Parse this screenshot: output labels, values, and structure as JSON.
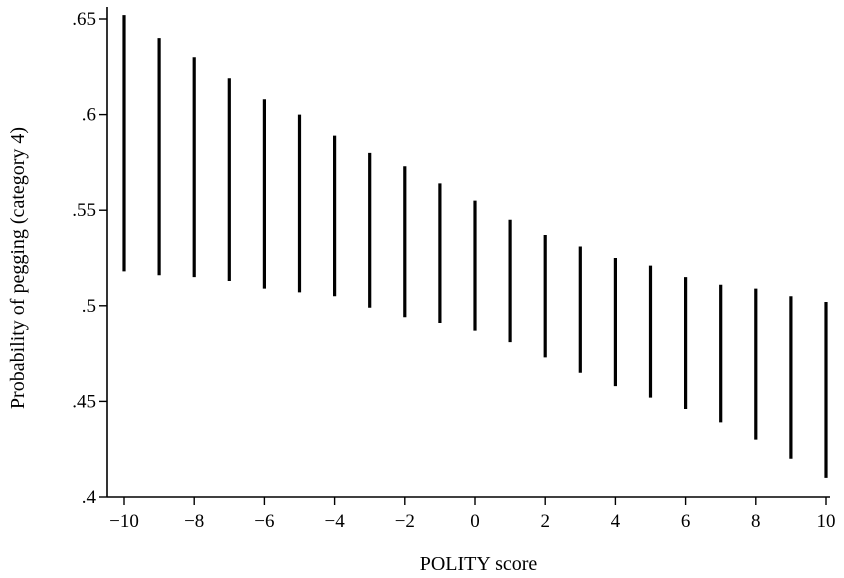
{
  "chart_data": {
    "type": "interval",
    "title": "",
    "xlabel": "POLITY score",
    "ylabel": "Probability of pegging (category 4)",
    "xlim": [
      -10,
      10
    ],
    "ylim": [
      0.4,
      0.65
    ],
    "x_ticks": [
      -10,
      -8,
      -6,
      -4,
      -2,
      0,
      2,
      4,
      6,
      8,
      10
    ],
    "x_tick_labels": [
      "−10",
      "−8",
      "−6",
      "−4",
      "−2",
      "0",
      "2",
      "4",
      "6",
      "8",
      "10"
    ],
    "y_ticks": [
      0.4,
      0.45,
      0.5,
      0.55,
      0.6,
      0.65
    ],
    "y_tick_labels": [
      ".4",
      ".45",
      ".5",
      ".55",
      ".6",
      ".65"
    ],
    "grid": false,
    "legend": "none",
    "series": [
      {
        "x": [
          -10,
          -9,
          -8,
          -7,
          -6,
          -5,
          -4,
          -3,
          -2,
          -1,
          0,
          1,
          2,
          3,
          4,
          5,
          6,
          7,
          8,
          9,
          10
        ],
        "lower": [
          0.518,
          0.516,
          0.515,
          0.513,
          0.509,
          0.507,
          0.505,
          0.499,
          0.494,
          0.491,
          0.487,
          0.481,
          0.473,
          0.465,
          0.458,
          0.452,
          0.446,
          0.439,
          0.43,
          0.42,
          0.41
        ],
        "upper": [
          0.652,
          0.64,
          0.63,
          0.619,
          0.608,
          0.6,
          0.589,
          0.58,
          0.573,
          0.564,
          0.555,
          0.545,
          0.537,
          0.531,
          0.525,
          0.521,
          0.515,
          0.511,
          0.509,
          0.505,
          0.502
        ]
      }
    ]
  }
}
